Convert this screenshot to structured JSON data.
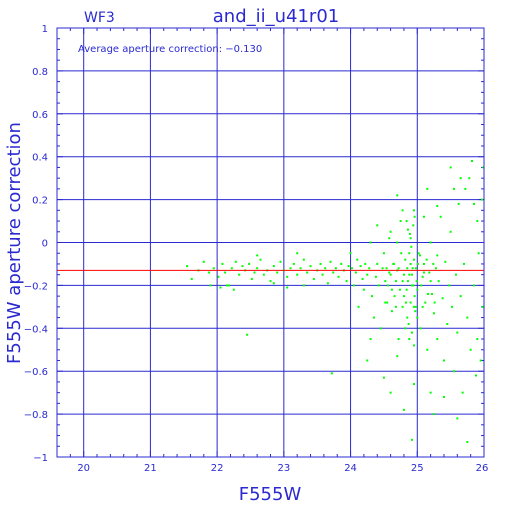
{
  "chart_data": {
    "type": "scatter",
    "title": "and_ii_u41r01",
    "chip": "WF3",
    "annotation": "Average aperture correction: −0.130",
    "xlabel": "F555W",
    "ylabel": "F555W aperture correction",
    "xlim": [
      19.6,
      26
    ],
    "ylim": [
      -1,
      1
    ],
    "xticks": [
      20,
      21,
      22,
      23,
      24,
      25,
      26
    ],
    "yticks": [
      1,
      0.8,
      0.6,
      0.4,
      0.2,
      0,
      -0.2,
      -0.4,
      -0.6,
      -0.8,
      -1
    ],
    "ytick_labels": [
      "1",
      "0.8",
      "0.6",
      "0.4",
      "0.2",
      "0",
      "−0.2",
      "−0.4",
      "−0.6",
      "−0.8",
      "−1"
    ],
    "grid": true,
    "reference_line": -0.13,
    "series": [
      {
        "color": "#00ff00",
        "points": [
          [
            21.55,
            -0.11
          ],
          [
            21.62,
            -0.17
          ],
          [
            21.72,
            -0.13
          ],
          [
            21.8,
            -0.09
          ],
          [
            21.88,
            -0.14
          ],
          [
            21.95,
            -0.12
          ],
          [
            22.02,
            -0.16
          ],
          [
            22.08,
            -0.1
          ],
          [
            22.12,
            -0.14
          ],
          [
            22.18,
            -0.2
          ],
          [
            22.22,
            -0.12
          ],
          [
            22.28,
            -0.09
          ],
          [
            22.33,
            -0.15
          ],
          [
            22.38,
            -0.11
          ],
          [
            22.42,
            -0.13
          ],
          [
            22.48,
            -0.1
          ],
          [
            22.52,
            -0.17
          ],
          [
            22.56,
            -0.14
          ],
          [
            22.6,
            -0.12
          ],
          [
            22.65,
            -0.08
          ],
          [
            22.7,
            -0.15
          ],
          [
            22.75,
            -0.13
          ],
          [
            22.8,
            -0.18
          ],
          [
            22.85,
            -0.11
          ],
          [
            22.9,
            -0.14
          ],
          [
            22.95,
            -0.09
          ],
          [
            23.0,
            -0.13
          ],
          [
            23.05,
            -0.16
          ],
          [
            23.1,
            -0.12
          ],
          [
            23.15,
            -0.1
          ],
          [
            23.2,
            -0.15
          ],
          [
            23.25,
            -0.12
          ],
          [
            23.3,
            -0.08
          ],
          [
            23.35,
            -0.14
          ],
          [
            23.4,
            -0.11
          ],
          [
            23.45,
            -0.17
          ],
          [
            23.5,
            -0.13
          ],
          [
            23.55,
            -0.1
          ],
          [
            23.58,
            -0.15
          ],
          [
            23.62,
            -0.12
          ],
          [
            23.66,
            -0.19
          ],
          [
            23.7,
            -0.09
          ],
          [
            23.74,
            -0.14
          ],
          [
            23.78,
            -0.12
          ],
          [
            23.82,
            -0.16
          ],
          [
            23.86,
            -0.1
          ],
          [
            23.9,
            -0.13
          ],
          [
            23.94,
            -0.18
          ],
          [
            23.97,
            -0.11
          ],
          [
            22.25,
            -0.22
          ],
          [
            22.05,
            -0.21
          ],
          [
            22.45,
            -0.43
          ],
          [
            22.6,
            -0.06
          ],
          [
            22.15,
            -0.2
          ],
          [
            23.05,
            -0.21
          ],
          [
            23.2,
            -0.05
          ],
          [
            23.72,
            -0.61
          ],
          [
            23.3,
            -0.2
          ],
          [
            22.85,
            -0.19
          ],
          [
            21.9,
            -0.2
          ],
          [
            24.0,
            -0.05
          ],
          [
            24.02,
            -0.12
          ],
          [
            24.05,
            -0.2
          ],
          [
            24.08,
            -0.14
          ],
          [
            24.1,
            -0.08
          ],
          [
            24.12,
            -0.3
          ],
          [
            24.15,
            -0.11
          ],
          [
            24.18,
            -0.17
          ],
          [
            24.2,
            -0.22
          ],
          [
            24.22,
            -0.1
          ],
          [
            24.25,
            -0.15
          ],
          [
            24.28,
            -0.12
          ],
          [
            24.3,
            0.0
          ],
          [
            24.32,
            -0.25
          ],
          [
            24.35,
            -0.35
          ],
          [
            24.38,
            -0.16
          ],
          [
            24.4,
            -0.1
          ],
          [
            24.42,
            -0.2
          ],
          [
            24.45,
            -0.4
          ],
          [
            24.48,
            -0.12
          ],
          [
            24.5,
            -0.05
          ],
          [
            24.52,
            -0.18
          ],
          [
            24.55,
            -0.28
          ],
          [
            24.58,
            -0.14
          ],
          [
            24.6,
            0.05
          ],
          [
            24.62,
            -0.22
          ],
          [
            24.65,
            -0.1
          ],
          [
            24.68,
            -0.3
          ],
          [
            24.7,
            -0.13
          ],
          [
            24.72,
            -0.45
          ],
          [
            24.75,
            0.1
          ],
          [
            24.78,
            -0.18
          ],
          [
            24.8,
            -0.25
          ],
          [
            24.82,
            -0.08
          ],
          [
            24.85,
            -0.35
          ],
          [
            24.88,
            -0.15
          ],
          [
            24.9,
            0.02
          ],
          [
            24.92,
            -0.2
          ],
          [
            24.95,
            -0.3
          ],
          [
            24.98,
            -0.12
          ],
          [
            25.0,
            -0.22
          ],
          [
            25.02,
            -0.05
          ],
          [
            25.05,
            -0.4
          ],
          [
            25.08,
            -0.16
          ],
          [
            25.1,
            -0.1
          ],
          [
            25.12,
            -0.28
          ],
          [
            25.15,
            -0.5
          ],
          [
            25.18,
            -0.14
          ],
          [
            25.2,
            0.0
          ],
          [
            25.22,
            -0.24
          ],
          [
            25.25,
            -0.33
          ],
          [
            25.28,
            -0.12
          ],
          [
            25.3,
            -0.45
          ],
          [
            25.32,
            -0.18
          ],
          [
            25.35,
            0.12
          ],
          [
            25.38,
            -0.26
          ],
          [
            25.4,
            -0.55
          ],
          [
            25.42,
            -0.09
          ],
          [
            25.45,
            -0.38
          ],
          [
            25.48,
            -0.2
          ],
          [
            25.5,
            0.05
          ],
          [
            25.52,
            -0.3
          ],
          [
            25.55,
            -0.6
          ],
          [
            25.58,
            -0.15
          ],
          [
            25.6,
            -0.42
          ],
          [
            25.62,
            0.18
          ],
          [
            25.65,
            -0.25
          ],
          [
            25.68,
            -0.7
          ],
          [
            25.7,
            -0.1
          ],
          [
            25.72,
            0.25
          ],
          [
            25.75,
            -0.35
          ],
          [
            25.78,
            0.3
          ],
          [
            25.8,
            -0.5
          ],
          [
            25.82,
            0.38
          ],
          [
            25.85,
            -0.2
          ],
          [
            25.88,
            -0.62
          ],
          [
            25.9,
            0.1
          ],
          [
            25.92,
            -0.05
          ],
          [
            25.95,
            -0.55
          ],
          [
            25.97,
            0.2
          ],
          [
            25.98,
            -0.3
          ],
          [
            25.99,
            0.35
          ],
          [
            24.88,
            -0.05
          ],
          [
            24.9,
            -0.1
          ],
          [
            24.92,
            -0.15
          ],
          [
            24.94,
            -0.2
          ],
          [
            24.96,
            -0.25
          ],
          [
            24.98,
            -0.3
          ],
          [
            25.0,
            -0.35
          ],
          [
            24.86,
            -0.18
          ],
          [
            24.84,
            -0.22
          ],
          [
            24.9,
            -0.28
          ],
          [
            24.93,
            -0.12
          ],
          [
            24.95,
            -0.08
          ],
          [
            24.97,
            -0.32
          ],
          [
            24.87,
            -0.38
          ],
          [
            24.91,
            -0.02
          ],
          [
            24.89,
            0.04
          ],
          [
            24.94,
            0.08
          ],
          [
            24.85,
            -0.12
          ],
          [
            24.83,
            -0.28
          ],
          [
            24.99,
            -0.18
          ],
          [
            25.01,
            -0.1
          ],
          [
            24.8,
            -0.15
          ],
          [
            24.78,
            -0.3
          ],
          [
            24.76,
            -0.05
          ],
          [
            24.74,
            -0.22
          ],
          [
            24.72,
            -0.12
          ],
          [
            24.7,
            0.0
          ],
          [
            24.68,
            -0.18
          ],
          [
            24.66,
            -0.25
          ],
          [
            24.64,
            -0.1
          ],
          [
            24.62,
            -0.32
          ],
          [
            24.6,
            -0.15
          ],
          [
            24.58,
            0.02
          ],
          [
            24.56,
            -0.2
          ],
          [
            24.54,
            -0.12
          ],
          [
            24.52,
            -0.28
          ],
          [
            24.92,
            -0.42
          ],
          [
            24.95,
            -0.48
          ],
          [
            24.88,
            -0.45
          ],
          [
            24.82,
            -0.4
          ],
          [
            24.78,
            0.15
          ],
          [
            24.84,
            0.1
          ],
          [
            24.86,
            0.06
          ],
          [
            24.96,
            0.12
          ],
          [
            25.04,
            -0.06
          ],
          [
            25.06,
            -0.2
          ],
          [
            25.08,
            -0.3
          ],
          [
            25.1,
            -0.14
          ],
          [
            25.14,
            -0.08
          ],
          [
            25.16,
            -0.24
          ],
          [
            25.2,
            -0.18
          ],
          [
            25.24,
            -0.1
          ],
          [
            25.26,
            -0.28
          ],
          [
            25.3,
            -0.06
          ],
          [
            24.92,
            -0.92
          ],
          [
            24.8,
            -0.78
          ],
          [
            24.5,
            -0.63
          ],
          [
            25.25,
            -0.8
          ],
          [
            25.6,
            -0.82
          ],
          [
            25.2,
            -0.7
          ],
          [
            24.7,
            -0.53
          ],
          [
            24.3,
            -0.45
          ],
          [
            25.75,
            -0.93
          ],
          [
            24.95,
            -0.66
          ],
          [
            25.4,
            -0.72
          ],
          [
            25.65,
            0.3
          ],
          [
            24.7,
            0.22
          ],
          [
            25.3,
            0.17
          ],
          [
            25.5,
            0.35
          ],
          [
            25.15,
            0.25
          ],
          [
            24.95,
            0.15
          ],
          [
            25.85,
            0.18
          ],
          [
            24.4,
            0.08
          ],
          [
            25.1,
            0.12
          ],
          [
            24.6,
            -0.7
          ],
          [
            25.55,
            0.25
          ],
          [
            24.25,
            -0.55
          ],
          [
            25.9,
            -0.45
          ]
        ]
      }
    ]
  }
}
